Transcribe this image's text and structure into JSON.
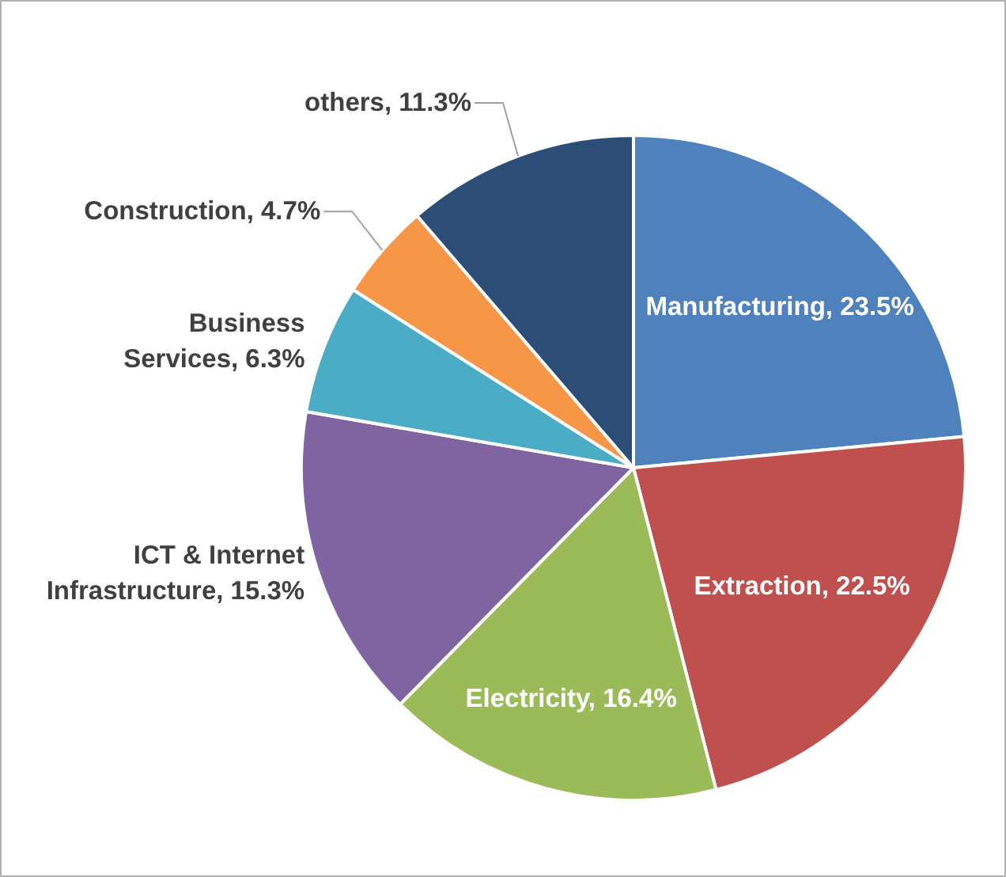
{
  "chart_data": {
    "type": "pie",
    "categories": [
      "Manufacturing",
      "Extraction",
      "Electricity",
      "ICT & Internet Infrastructure",
      "Business Services",
      "Construction",
      "others"
    ],
    "values": [
      23.5,
      22.5,
      16.4,
      15.3,
      6.3,
      4.7,
      11.3
    ],
    "value_labels": [
      "23.5%",
      "22.5%",
      "16.4%",
      "15.3%",
      "6.3%",
      "4.7%",
      "11.3%"
    ],
    "colors": [
      "#4f81bd",
      "#c0504d",
      "#9bbb59",
      "#8064a2",
      "#4bacc6",
      "#f79646",
      "#2c4d75"
    ]
  }
}
